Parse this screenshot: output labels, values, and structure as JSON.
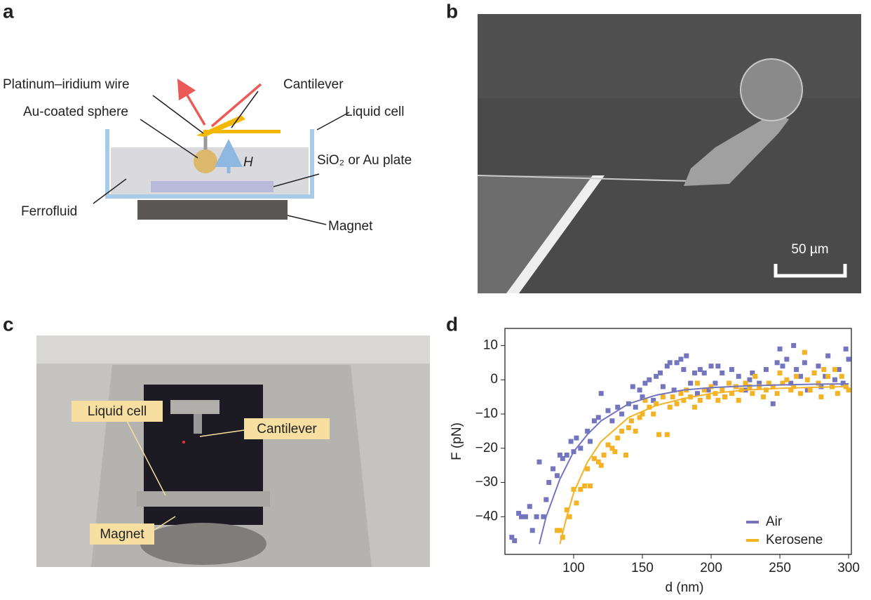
{
  "panel_labels": [
    "a",
    "b",
    "c",
    "d"
  ],
  "schematic": {
    "wire": "Platinum–iridium wire",
    "cantilever": "Cantilever",
    "sphere": "Au-coated sphere",
    "liquid_cell": "Liquid cell",
    "field": "H",
    "plate": "SiO₂ or Au plate",
    "ferrofluid": "Ferrofluid",
    "magnet": "Magnet"
  },
  "micrograph": {
    "scale_bar": "50 µm"
  },
  "photo": {
    "liquid_cell": "Liquid cell",
    "cantilever": "Cantilever",
    "magnet": "Magnet"
  },
  "chart_data": {
    "type": "scatter",
    "x_label": "d (nm)",
    "y_label": "F (pN)",
    "xlim": [
      50,
      302
    ],
    "ylim": [
      -51,
      15
    ],
    "xticks": [
      100,
      150,
      200,
      250,
      300
    ],
    "yticks": [
      10,
      0,
      {
        "value": -10,
        "label": "−10"
      },
      {
        "value": -20,
        "label": "−20"
      },
      {
        "value": -30,
        "label": "−30"
      },
      {
        "value": -40,
        "label": "−40"
      }
    ],
    "legend": "lower right",
    "series": [
      {
        "name": "Air",
        "color": "#7375bf",
        "x": [
          55,
          57,
          60,
          62,
          65,
          68,
          70,
          73,
          75,
          78,
          80,
          82,
          85,
          88,
          90,
          92,
          95,
          98,
          100,
          102,
          105,
          110,
          112,
          115,
          118,
          120,
          125,
          128,
          132,
          135,
          140,
          143,
          145,
          148,
          150,
          152,
          155,
          158,
          160,
          163,
          165,
          168,
          170,
          173,
          175,
          178,
          180,
          182,
          185,
          188,
          190,
          192,
          195,
          198,
          200,
          203,
          205,
          208,
          210,
          215,
          218,
          220,
          225,
          228,
          230,
          235,
          240,
          245,
          248,
          250,
          252,
          255,
          258,
          260,
          262,
          265,
          268,
          270,
          275,
          278,
          280,
          283,
          285,
          288,
          290,
          293,
          296,
          298,
          300
        ],
        "values": [
          -46,
          -47,
          -39,
          -40,
          -40,
          -37,
          -44,
          -40,
          -24,
          -40,
          -35,
          -30,
          -26,
          -28,
          -22,
          -23,
          -22,
          -18,
          -21,
          -17,
          -20,
          -15,
          -18,
          -12,
          -11,
          -4,
          -9,
          -12,
          -8,
          -10,
          -7,
          -2,
          -8,
          -3,
          -5,
          -1,
          0,
          -6,
          1,
          2,
          -2,
          4,
          5,
          -3,
          5,
          6,
          3,
          7,
          -1,
          2,
          -4,
          3,
          2,
          -3,
          4,
          -1,
          4,
          2,
          -5,
          3,
          -2,
          1,
          -3,
          0,
          2,
          -1,
          3,
          -7,
          5,
          9,
          4,
          6,
          -1,
          10,
          3,
          1,
          5,
          -3,
          2,
          4,
          -2,
          1,
          7,
          -2,
          0,
          3,
          -1,
          9,
          6
        ]
      },
      {
        "name": "Kerosene",
        "color": "#f3b325",
        "x": [
          88,
          90,
          92,
          95,
          97,
          100,
          102,
          105,
          108,
          110,
          112,
          115,
          118,
          120,
          122,
          125,
          128,
          130,
          132,
          135,
          138,
          140,
          142,
          145,
          148,
          150,
          152,
          155,
          158,
          160,
          162,
          165,
          168,
          170,
          172,
          175,
          178,
          180,
          182,
          185,
          188,
          190,
          192,
          195,
          198,
          200,
          203,
          205,
          208,
          210,
          213,
          215,
          218,
          220,
          222,
          225,
          228,
          230,
          232,
          235,
          238,
          240,
          242,
          245,
          248,
          250,
          252,
          255,
          258,
          260,
          262,
          265,
          268,
          270,
          272,
          275,
          278,
          280,
          282,
          285,
          288,
          290,
          292,
          295,
          298,
          300
        ],
        "values": [
          -44,
          -44,
          -46,
          -38,
          -40,
          -32,
          -36,
          -32,
          -31,
          -26,
          -31,
          -23,
          -24,
          -25,
          -22,
          -19,
          -20,
          -21,
          -17,
          -15,
          -22,
          -14,
          -12,
          -15,
          -11,
          -10,
          -6,
          -8,
          -10,
          -7,
          -16,
          -5,
          -16,
          -8,
          -5,
          -7,
          -4,
          -6,
          -3,
          -5,
          -8,
          -1,
          -6,
          -3,
          -5,
          -2,
          -4,
          -6,
          -3,
          -5,
          -1,
          -4,
          -2,
          -6,
          -3,
          -1,
          -2,
          -4,
          1,
          -2,
          -5,
          -3,
          -1,
          -2,
          -4,
          2,
          -1,
          0,
          -3,
          -2,
          1,
          -4,
          8,
          0,
          -3,
          2,
          -1,
          -5,
          3,
          1,
          -2,
          3,
          -4,
          1,
          -2,
          -3
        ]
      }
    ],
    "fits": [
      {
        "color": "#7375bf",
        "x": [
          75,
          80,
          90,
          100,
          110,
          120,
          140,
          160,
          180,
          200,
          225,
          250,
          275,
          300
        ],
        "values": [
          -48,
          -40,
          -29,
          -21,
          -16,
          -12,
          -7,
          -4.5,
          -3,
          -2.3,
          -1.8,
          -1.5,
          -1.3,
          -1.2
        ]
      },
      {
        "color": "#f3b325",
        "x": [
          90,
          95,
          100,
          110,
          120,
          140,
          160,
          180,
          200,
          225,
          250,
          275,
          300
        ],
        "values": [
          -48,
          -40,
          -33,
          -24,
          -18,
          -11,
          -7.5,
          -5.5,
          -4,
          -3,
          -2.5,
          -2.2,
          -2
        ]
      }
    ]
  }
}
